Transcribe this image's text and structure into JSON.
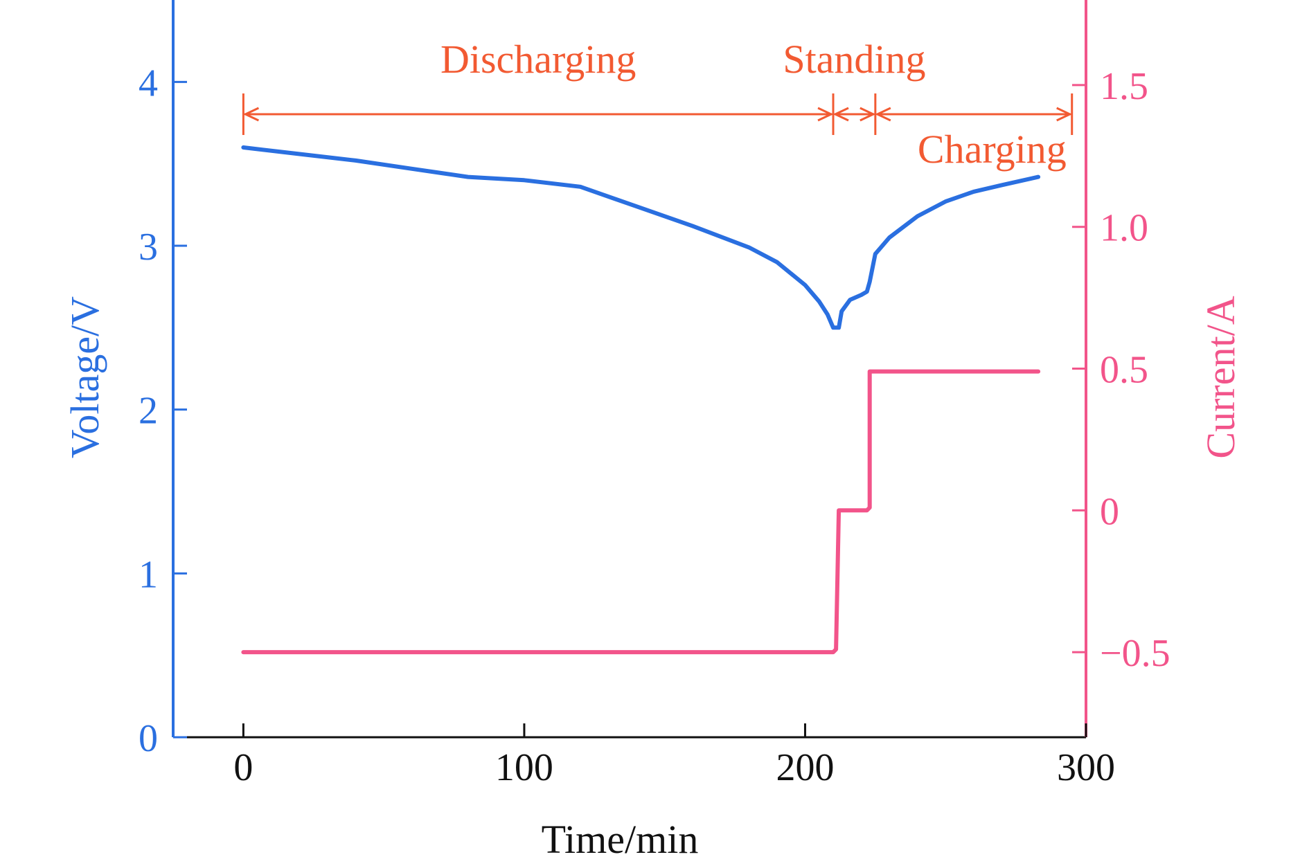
{
  "chart_data": {
    "type": "line",
    "xlabel": "Time/min",
    "ylabel_left": "Voltage/V",
    "ylabel_right": "Current/A",
    "xlim": [
      -25,
      300
    ],
    "ylim_left": [
      0,
      4.5
    ],
    "ylim_right": [
      -0.8,
      1.8
    ],
    "x_ticks": [
      0,
      100,
      200,
      300
    ],
    "x_tick_labels": [
      "0",
      "100",
      "200",
      "300"
    ],
    "y_left_ticks": [
      0,
      1,
      2,
      3,
      4
    ],
    "y_left_tick_labels": [
      "0",
      "1",
      "2",
      "3",
      "4"
    ],
    "y_right_ticks": [
      -0.5,
      0,
      0.5,
      1.0,
      1.5
    ],
    "y_right_tick_labels": [
      "−0.5",
      "0",
      "0.5",
      "1.0",
      "1.5"
    ],
    "colors": {
      "voltage": "#2a6fe0",
      "current": "#f2548a",
      "annotation": "#f25a32"
    },
    "series": [
      {
        "name": "Voltage",
        "axis": "left",
        "x": [
          0,
          20,
          40,
          60,
          80,
          100,
          120,
          140,
          160,
          180,
          190,
          200,
          205,
          208,
          210,
          212,
          213,
          216,
          220,
          222,
          223,
          225,
          230,
          240,
          250,
          260,
          270,
          283
        ],
        "y": [
          3.6,
          3.56,
          3.52,
          3.47,
          3.42,
          3.4,
          3.36,
          3.24,
          3.12,
          2.99,
          2.9,
          2.76,
          2.66,
          2.58,
          2.5,
          2.5,
          2.6,
          2.67,
          2.7,
          2.72,
          2.78,
          2.95,
          3.05,
          3.18,
          3.27,
          3.33,
          3.37,
          3.42
        ]
      },
      {
        "name": "Current",
        "axis": "right",
        "x": [
          0,
          210,
          211,
          212,
          212,
          222,
          223,
          223,
          283
        ],
        "y": [
          -0.5,
          -0.5,
          -0.49,
          0.0,
          0.0,
          0.0,
          0.01,
          0.49,
          0.49
        ]
      }
    ],
    "annotations": [
      {
        "text": "Discharging",
        "x_start": 0,
        "x_end": 210
      },
      {
        "text": "Standing",
        "x_start": 210,
        "x_end": 225
      },
      {
        "text": "Charging",
        "x_start": 225,
        "x_end": 295
      }
    ]
  }
}
